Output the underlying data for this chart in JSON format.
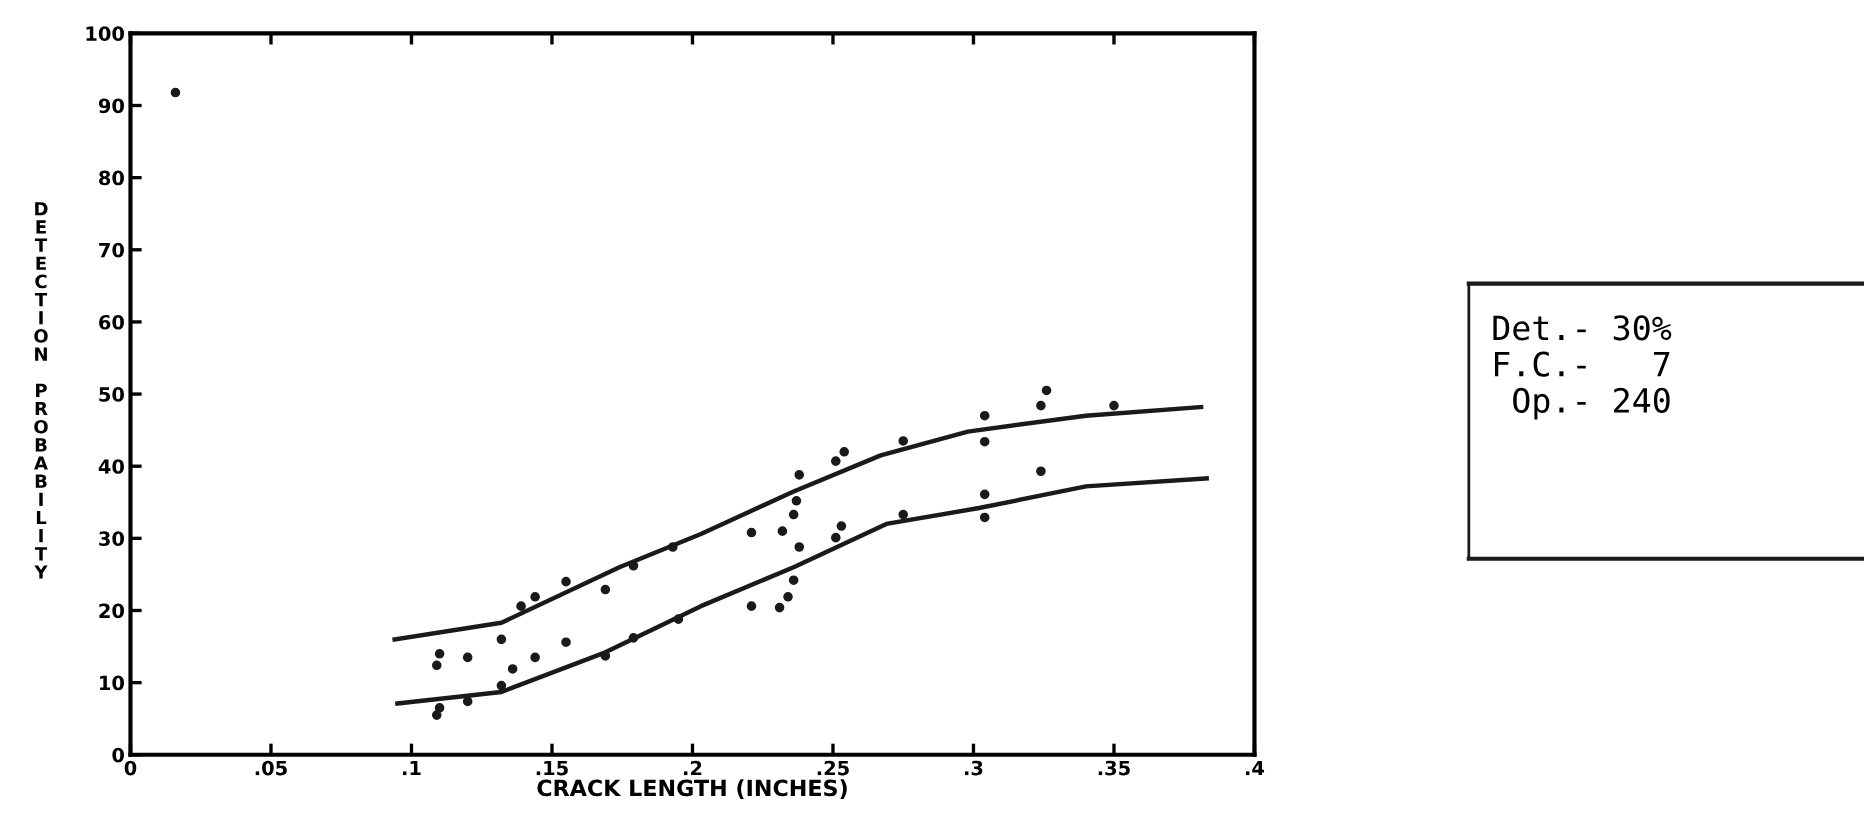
{
  "chart_data": {
    "type": "line",
    "xlabel": "CRACK LENGTH (INCHES)",
    "ylabel": "DETECTION PROBABILITY",
    "xlim": [
      0,
      0.4
    ],
    "ylim": [
      0,
      100
    ],
    "xticks": [
      0,
      {
        "value": 0.05,
        "label": ".05"
      },
      {
        "value": 0.1,
        "label": ".1"
      },
      {
        "value": 0.15,
        "label": ".15"
      },
      {
        "value": 0.2,
        "label": ".2"
      },
      {
        "value": 0.25,
        "label": ".25"
      },
      {
        "value": 0.3,
        "label": ".3"
      },
      {
        "value": 0.35,
        "label": ".35"
      },
      {
        "value": 0.4,
        "label": ".4"
      }
    ],
    "yticks": [
      0,
      10,
      20,
      30,
      40,
      50,
      60,
      70,
      80,
      90,
      100
    ],
    "grid": false,
    "legend": false,
    "series": [
      {
        "color": "#1a1a1a",
        "marker": "none",
        "line_style": "solid",
        "x": [
          0.094,
          0.132,
          0.174,
          0.203,
          0.236,
          0.267,
          0.298,
          0.34,
          0.381
        ],
        "values": [
          16,
          18.3,
          26,
          30.6,
          36.5,
          41.5,
          44.8,
          47,
          48.2
        ]
      },
      {
        "color": "#1a1a1a",
        "marker": "none",
        "line_style": "solid",
        "x": [
          0.095,
          0.132,
          0.169,
          0.203,
          0.236,
          0.269,
          0.302,
          0.34,
          0.383
        ],
        "values": [
          7.1,
          8.7,
          14.2,
          20.6,
          26,
          32,
          34.2,
          37.2,
          38.3
        ]
      },
      {
        "type": "scatter",
        "color": "#1a1a1a",
        "marker": "circle",
        "x": [
          0.016,
          0.326,
          0.324,
          0.35,
          0.304,
          0.304,
          0.275,
          0.254,
          0.251,
          0.238,
          0.237,
          0.236,
          0.232,
          0.221,
          0.193,
          0.179,
          0.169,
          0.155,
          0.144,
          0.139,
          0.132,
          0.11,
          0.12,
          0.109
        ],
        "values": [
          91.8,
          50.5,
          48.4,
          48.4,
          47,
          43.4,
          43.5,
          42,
          40.7,
          38.8,
          35.2,
          33.3,
          31,
          30.8,
          28.8,
          26.2,
          22.9,
          24,
          21.9,
          20.6,
          16,
          14,
          13.5,
          12.4
        ]
      },
      {
        "type": "scatter",
        "color": "#1a1a1a",
        "marker": "circle",
        "x": [
          0.324,
          0.304,
          0.304,
          0.275,
          0.253,
          0.251,
          0.238,
          0.236,
          0.234,
          0.231,
          0.221,
          0.195,
          0.179,
          0.169,
          0.155,
          0.144,
          0.136,
          0.132,
          0.12,
          0.11,
          0.109
        ],
        "values": [
          39.3,
          36.1,
          32.9,
          33.3,
          31.7,
          30.1,
          28.8,
          24.2,
          21.9,
          20.4,
          20.6,
          18.8,
          16.2,
          13.7,
          15.6,
          13.5,
          11.9,
          9.6,
          7.4,
          6.5,
          5.5
        ]
      }
    ],
    "annotations": [
      "Det.- 30%",
      "F.C.-   7",
      " Op.- 240"
    ]
  }
}
